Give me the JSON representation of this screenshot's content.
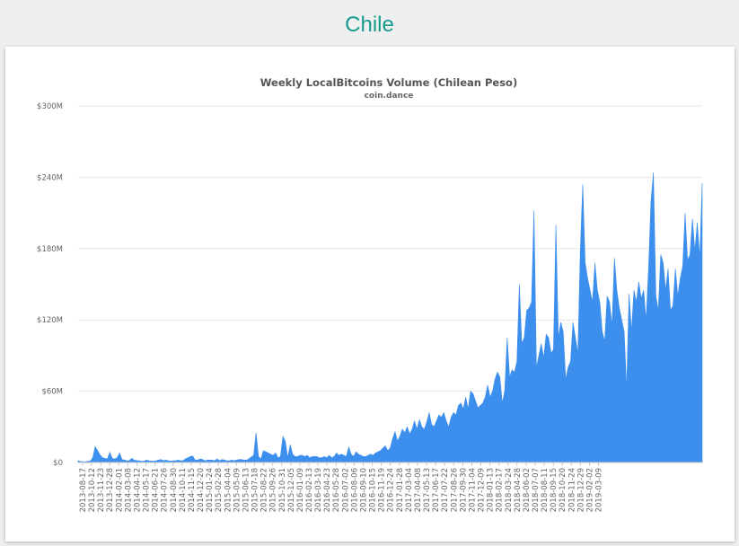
{
  "page": {
    "title": "Chile"
  },
  "colors": {
    "title": "#159a8c",
    "series": "#3d8fee",
    "grid": "#e6e6e6"
  },
  "chart_data": {
    "type": "area",
    "title": "Weekly LocalBitcoins Volume (Chilean Peso)",
    "subtitle": "coin.dance",
    "xlabel": "",
    "ylabel": "",
    "grid": true,
    "legend": "none",
    "ylim": [
      0,
      300000000
    ],
    "y_ticks": [
      {
        "value": 0,
        "label": "$0"
      },
      {
        "value": 60000000,
        "label": "$60M"
      },
      {
        "value": 120000000,
        "label": "$120M"
      },
      {
        "value": 180000000,
        "label": "$180M"
      },
      {
        "value": 240000000,
        "label": "$240M"
      },
      {
        "value": 300000000,
        "label": "$300M"
      }
    ],
    "x_start": "2013-08-17",
    "x_tick_labels": [
      "2013-08-17",
      "2013-10-12",
      "2013-11-23",
      "2013-12-28",
      "2014-02-01",
      "2014-03-08",
      "2014-04-12",
      "2014-05-17",
      "2014-06-21",
      "2014-07-26",
      "2014-08-30",
      "2014-10-11",
      "2014-11-15",
      "2014-12-20",
      "2015-01-24",
      "2015-02-28",
      "2015-04-04",
      "2015-05-09",
      "2015-06-13",
      "2015-07-18",
      "2015-08-22",
      "2015-09-26",
      "2015-10-31",
      "2015-12-05",
      "2016-01-09",
      "2016-02-13",
      "2016-03-19",
      "2016-04-23",
      "2016-05-28",
      "2016-07-02",
      "2016-08-06",
      "2016-09-10",
      "2016-10-15",
      "2016-11-19",
      "2016-12-24",
      "2017-01-28",
      "2017-03-04",
      "2017-04-08",
      "2017-05-13",
      "2017-06-17",
      "2017-07-22",
      "2017-08-26",
      "2017-09-30",
      "2017-11-04",
      "2017-12-09",
      "2018-01-13",
      "2018-02-17",
      "2018-03-24",
      "2018-04-28",
      "2018-06-02",
      "2018-07-07",
      "2018-08-11",
      "2018-09-15",
      "2018-10-20",
      "2018-11-24",
      "2018-12-29",
      "2019-02-02",
      "2019-03-09"
    ],
    "series": [
      {
        "values": [
          1.5,
          0.8,
          0.6,
          0.7,
          1.0,
          1.2,
          4.0,
          13.5,
          10.0,
          6.5,
          4.0,
          3.5,
          3.0,
          8.5,
          3.5,
          3.0,
          4.0,
          8.0,
          2.5,
          2.0,
          1.5,
          1.5,
          3.5,
          2.0,
          1.5,
          1.5,
          1.0,
          1.0,
          2.0,
          1.5,
          1.2,
          1.0,
          1.5,
          2.0,
          2.5,
          1.5,
          2.0,
          1.5,
          1.2,
          1.5,
          1.5,
          2.0,
          1.5,
          1.5,
          3.0,
          4.0,
          5.0,
          5.5,
          2.0,
          2.0,
          3.0,
          2.5,
          1.5,
          2.0,
          2.0,
          2.0,
          1.5,
          3.0,
          1.5,
          2.5,
          2.0,
          1.5,
          1.5,
          2.0,
          1.5,
          2.0,
          2.5,
          2.5,
          2.0,
          2.0,
          3.0,
          4.5,
          6.0,
          25.0,
          5.0,
          3.0,
          10.0,
          9.0,
          8.0,
          7.0,
          6.0,
          8.0,
          4.0,
          5.0,
          22.0,
          18.0,
          4.0,
          15.0,
          7.0,
          5.0,
          5.0,
          6.0,
          6.0,
          5.0,
          6.0,
          4.0,
          5.0,
          5.0,
          5.0,
          4.0,
          4.0,
          5.0,
          4.0,
          6.0,
          4.0,
          5.0,
          8.0,
          6.0,
          7.0,
          6.0,
          5.0,
          13.0,
          7.0,
          5.0,
          9.0,
          7.0,
          6.0,
          5.0,
          5.0,
          6.0,
          7.0,
          6.0,
          8.0,
          9.0,
          10.0,
          12.0,
          14.0,
          10.0,
          12.0,
          20.0,
          26.0,
          18.0,
          22.0,
          28.0,
          25.0,
          30.0,
          24.0,
          28.0,
          35.0,
          28.0,
          36.0,
          30.0,
          28.0,
          34.0,
          42.0,
          32.0,
          30.0,
          35.0,
          40.0,
          38.0,
          42.0,
          35.0,
          30.0,
          38.0,
          42.0,
          40.0,
          48.0,
          50.0,
          45.0,
          55.0,
          45.0,
          60.0,
          58.0,
          52.0,
          46.0,
          48.0,
          50.0,
          55.0,
          65.0,
          55.0,
          60.0,
          70.0,
          76.0,
          72.0,
          50.0,
          60.0,
          105.0,
          72.0,
          78.0,
          76.0,
          85.0,
          150.0,
          100.0,
          105.0,
          128.0,
          130.0,
          135.0,
          212.0,
          80.0,
          90.0,
          100.0,
          88.0,
          108.0,
          105.0,
          92.0,
          95.0,
          200.0,
          105.0,
          118.0,
          110.0,
          70.0,
          80.0,
          85.0,
          118.0,
          105.0,
          92.0,
          178.0,
          234.0,
          168.0,
          155.0,
          145.0,
          135.0,
          168.0,
          145.0,
          135.0,
          110.0,
          102.0,
          140.0,
          135.0,
          115.0,
          172.0,
          145.0,
          130.0,
          120.0,
          110.0,
          62.0,
          142.0,
          110.0,
          145.0,
          135.0,
          152.0,
          138.0,
          145.0,
          120.0,
          163.0,
          220.0,
          244.0,
          140.0,
          128.0,
          175.0,
          168.0,
          145.0,
          163.0,
          128.0,
          132.0,
          163.0,
          140.0,
          155.0,
          165.0,
          210.0,
          170.0,
          175.0,
          205.0,
          178.0,
          202.0,
          172.0,
          235.0
        ],
        "unit": "million CLP"
      }
    ]
  }
}
